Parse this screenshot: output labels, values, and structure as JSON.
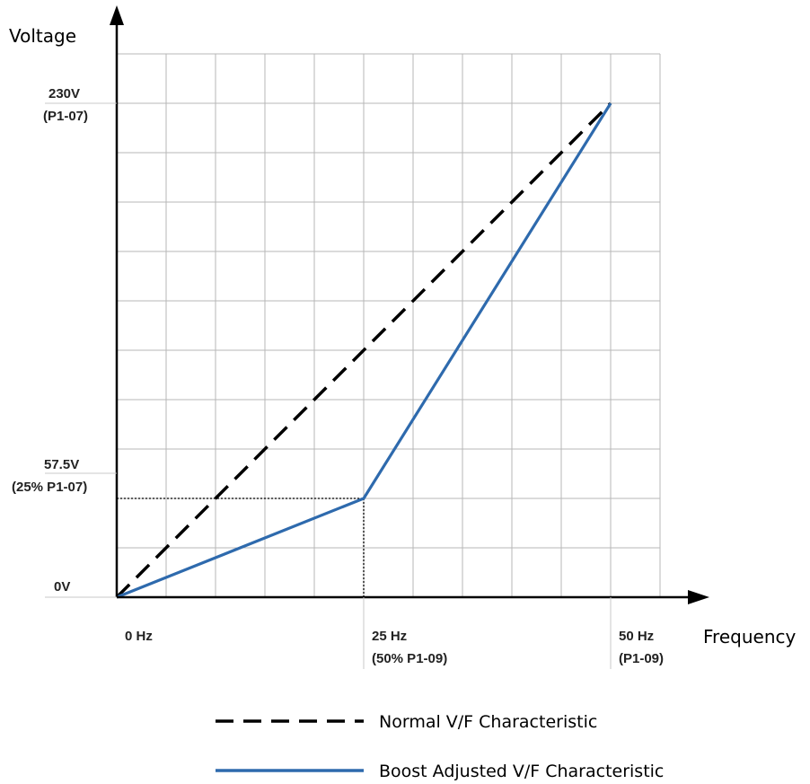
{
  "chart_data": {
    "type": "line",
    "x_unit": "Hz",
    "y_unit": "V",
    "xlabel": "Frequency",
    "ylabel": "Voltage",
    "xlim": [
      0,
      55
    ],
    "ylim": [
      0,
      253
    ],
    "grid": true,
    "x_ticks": [
      {
        "value": 0,
        "lines": [
          "0 Hz"
        ]
      },
      {
        "value": 25,
        "lines": [
          "25 Hz",
          "(50% P1-09)"
        ]
      },
      {
        "value": 50,
        "lines": [
          "50 Hz",
          "(P1-09)"
        ]
      }
    ],
    "y_ticks": [
      {
        "value": 0,
        "lines": [
          "0V"
        ]
      },
      {
        "value": 57.5,
        "lines": [
          "57.5V",
          "(25% P1-07)"
        ]
      },
      {
        "value": 230,
        "lines": [
          "230V",
          "(P1-07)"
        ]
      }
    ],
    "series": [
      {
        "name": "Normal V/F Characteristic",
        "style": "dashed",
        "color": "#000000",
        "x": [
          0,
          50
        ],
        "y": [
          0,
          230
        ]
      },
      {
        "name": "Boost Adjusted V/F Characteristic",
        "style": "solid",
        "color": "#2e6aad",
        "x": [
          0,
          25,
          50
        ],
        "y": [
          0,
          46,
          230
        ]
      }
    ],
    "reference_lines": {
      "style": "dotted",
      "x": 25,
      "y": 46
    },
    "legend_position": "bottom"
  }
}
